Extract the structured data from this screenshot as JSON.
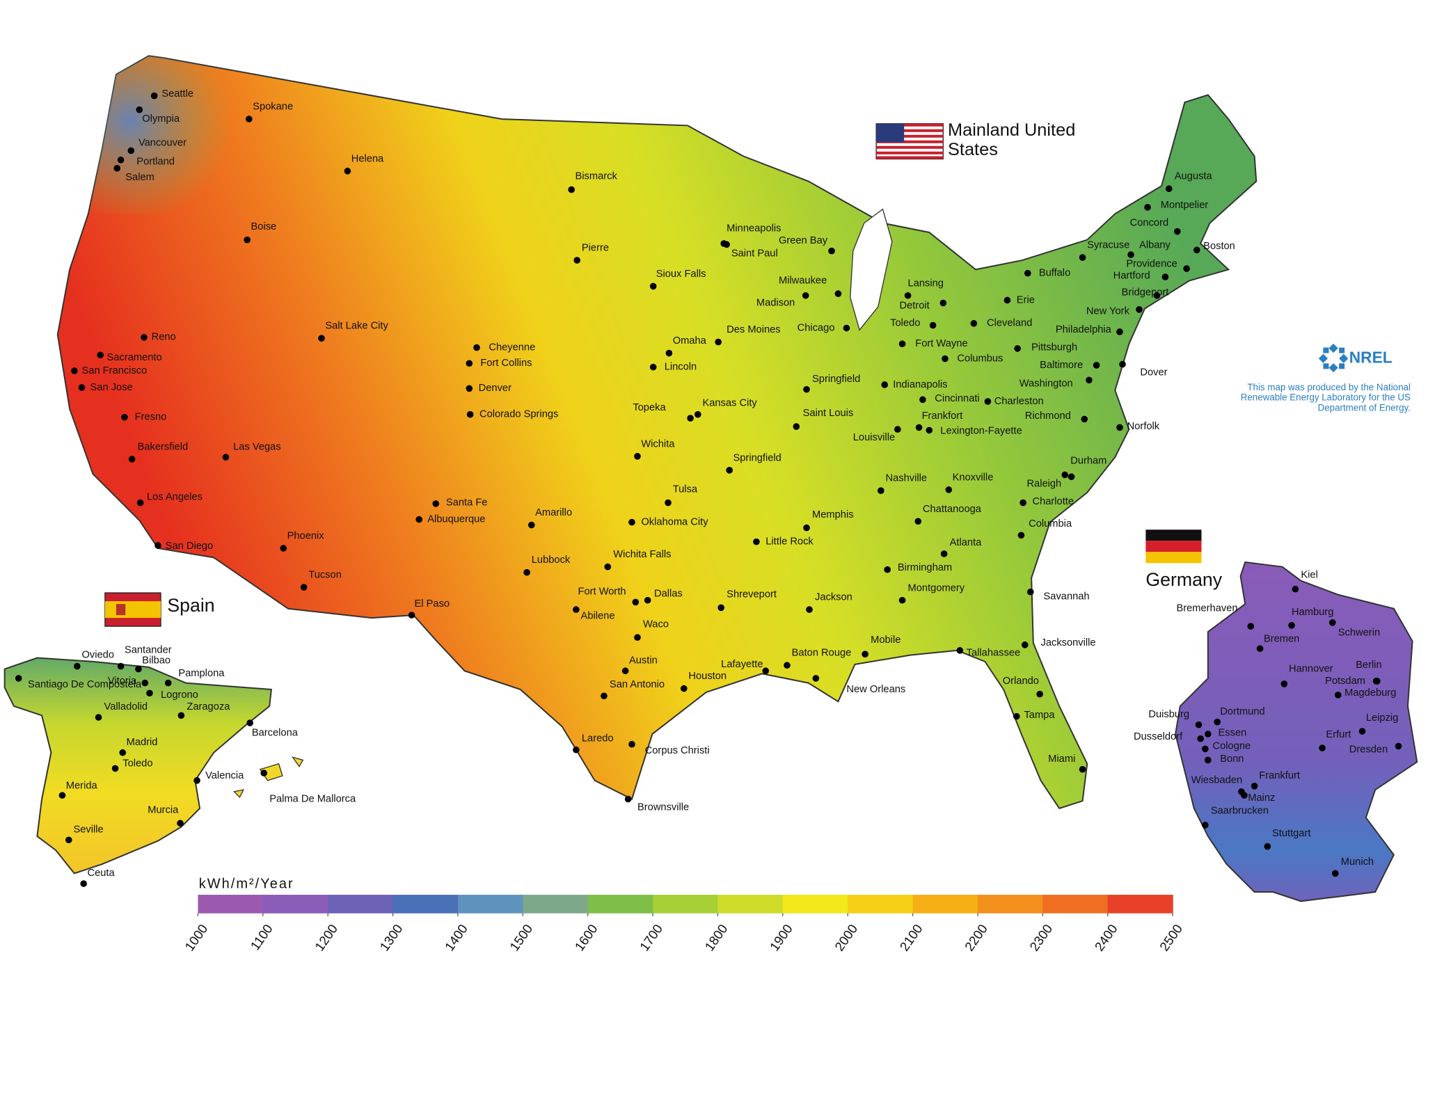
{
  "legend": {
    "title": "kWh/m²/Year",
    "range": [
      1000,
      2500
    ],
    "ticks": [
      1000,
      1100,
      1200,
      1300,
      1400,
      1500,
      1600,
      1700,
      1800,
      1900,
      2000,
      2100,
      2200,
      2300,
      2400,
      2500
    ],
    "colors": [
      "#9b59b0",
      "#8a5db8",
      "#6b62b6",
      "#4a70b8",
      "#5f93bf",
      "#7ea88a",
      "#7dbf47",
      "#a6cf38",
      "#cfdc2a",
      "#f2e81c",
      "#f7cf16",
      "#f6b015",
      "#f3901d",
      "#ef6e21",
      "#e9402a"
    ]
  },
  "regions": {
    "us": {
      "label": "Mainland United States",
      "cities": [
        "Seattle",
        "Olympia",
        "Spokane",
        "Vancouver",
        "Portland",
        "Salem",
        "Helena",
        "Boise",
        "Bismarck",
        "Pierre",
        "Minneapolis",
        "Saint Paul",
        "Green Bay",
        "Sioux Falls",
        "Milwaukee",
        "Madison",
        "Lansing",
        "Detroit",
        "Toledo",
        "Cleveland",
        "Erie",
        "Buffalo",
        "Syracuse",
        "Albany",
        "Augusta",
        "Montpelier",
        "Concord",
        "Boston",
        "Providence",
        "Hartford",
        "Bridgeport",
        "New York",
        "Philadelphia",
        "Pittsburgh",
        "Baltimore",
        "Dover",
        "Washington",
        "Reno",
        "Sacramento",
        "San Francisco",
        "San Jose",
        "Salt Lake City",
        "Cheyenne",
        "Fort Collins",
        "Denver",
        "Colorado Springs",
        "Omaha",
        "Lincoln",
        "Des Moines",
        "Chicago",
        "Fort Wayne",
        "Columbus",
        "Springfield",
        "Indianapolis",
        "Cincinnati",
        "Charleston",
        "Frankfort",
        "Lexington-Fayette",
        "Richmond",
        "Norfolk",
        "Fresno",
        "Bakersfield",
        "Las Vegas",
        "Topeka",
        "Kansas City",
        "Saint Louis",
        "Louisville",
        "Wichita",
        "Springfield",
        "Durham",
        "Raleigh",
        "Nashville",
        "Knoxville",
        "Charlotte",
        "Tulsa",
        "Los Angeles",
        "Santa Fe",
        "Albuquerque",
        "Amarillo",
        "Oklahoma City",
        "Memphis",
        "Chattanooga",
        "Columbia",
        "Atlanta",
        "Little Rock",
        "Phoenix",
        "San Diego",
        "Wichita Falls",
        "Lubbock",
        "Birmingham",
        "Tucson",
        "Fort Worth",
        "Dallas",
        "Abilene",
        "Shreveport",
        "Jackson",
        "Montgomery",
        "Savannah",
        "El Paso",
        "Waco",
        "Mobile",
        "Baton Rouge",
        "Tallahassee",
        "Jacksonville",
        "Lafayette",
        "Austin",
        "Houston",
        "New Orleans",
        "San Antonio",
        "Orlando",
        "Tampa",
        "Laredo",
        "Corpus Christi",
        "Miami",
        "Brownsville"
      ]
    },
    "spain": {
      "label": "Spain",
      "cities": [
        "Oviedo",
        "Santander",
        "Bilbao",
        "Pamplona",
        "Santiago De Compostela",
        "Vitoria",
        "Logrono",
        "Valladolid",
        "Zaragoza",
        "Barcelona",
        "Madrid",
        "Toledo",
        "Valencia",
        "Palma De Mallorca",
        "Merida",
        "Murcia",
        "Seville",
        "Ceuta"
      ]
    },
    "germany": {
      "label": "Germany",
      "cities": [
        "Kiel",
        "Hamburg",
        "Bremerhaven",
        "Bremen",
        "Schwerin",
        "Hannover",
        "Berlin",
        "Potsdam",
        "Magdeburg",
        "Duisburg",
        "Dortmund",
        "Essen",
        "Dusseldorf",
        "Cologne",
        "Bonn",
        "Leipzig",
        "Erfurt",
        "Dresden",
        "Frankfurt",
        "Wiesbaden",
        "Mainz",
        "Saarbrucken",
        "Stuttgart",
        "Munich"
      ]
    }
  },
  "credit": {
    "logo": "NREL",
    "text": "This map was produced by the National Renewable Energy Laboratory for the US Department of Energy."
  }
}
